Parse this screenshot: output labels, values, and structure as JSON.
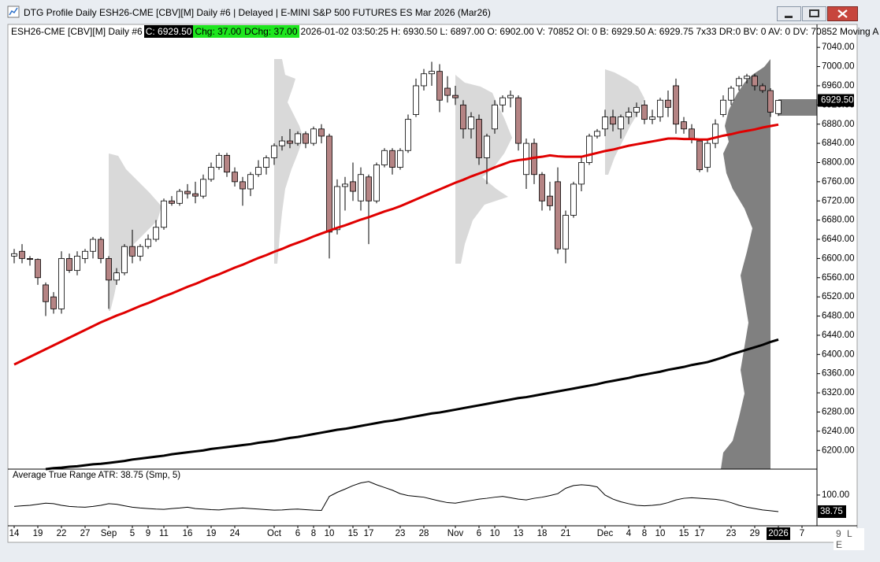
{
  "window": {
    "title": "DTG Profile Daily ESH26-CME [CBV][M]  Daily #6 | Delayed | E-MINI S&P 500 FUTURES ES Mar 2026 (Mar26)"
  },
  "header": {
    "instrument": "ESH26-CME [CBV][M]  Daily #6",
    "close": "C: 6929.50",
    "change": "Chg: 37.00",
    "day_change": "DChg: 37.00",
    "details": "2026-01-02 03:50:25 H: 6930.50 L: 6897.00 O: 6902.00 V: 70852 OI: 0 B: 6929.50 A: 6929.75 7x33 DR:0 BV: 0 AV: 0 DV: 70852 Moving A"
  },
  "status": "9 L E",
  "chart_data": [
    {
      "type": "candlestick",
      "categories": [
        "14",
        null,
        null,
        "19",
        null,
        null,
        "22",
        null,
        null,
        "27",
        null,
        null,
        "Sep",
        null,
        null,
        "5",
        null,
        "9",
        null,
        "11",
        null,
        null,
        "16",
        null,
        null,
        "19",
        null,
        null,
        "24",
        null,
        null,
        null,
        null,
        "Oct",
        null,
        null,
        "6",
        null,
        "8",
        null,
        "10",
        null,
        null,
        "15",
        null,
        "17",
        null,
        null,
        null,
        "23",
        null,
        null,
        "28",
        null,
        null,
        null,
        "Nov",
        null,
        null,
        "6",
        null,
        "10",
        null,
        null,
        "13",
        null,
        null,
        "18",
        null,
        null,
        "21",
        null,
        null,
        null,
        null,
        "Dec",
        null,
        null,
        "4",
        null,
        "8",
        null,
        "10",
        null,
        null,
        "15",
        null,
        "17",
        null,
        null,
        null,
        "23",
        null,
        null,
        "29",
        null,
        null,
        "2026",
        null,
        null,
        "7"
      ],
      "open": [
        6605,
        6615,
        6600,
        6598,
        6545,
        6520,
        6495,
        6600,
        6575,
        6600,
        6615,
        6640,
        6600,
        6555,
        6570,
        6625,
        6605,
        6625,
        6640,
        6665,
        6720,
        6715,
        6740,
        6735,
        6730,
        6765,
        6790,
        6815,
        6780,
        6760,
        6745,
        6775,
        6790,
        6810,
        6835,
        6845,
        6840,
        6860,
        6840,
        6870,
        6855,
        6660,
        6750,
        6760,
        6720,
        6770,
        6720,
        6795,
        6825,
        6790,
        6825,
        6900,
        6960,
        6985,
        6990,
        6955,
        6940,
        6920,
        6870,
        6890,
        6810,
        6870,
        6920,
        6935,
        6935,
        6775,
        6840,
        6775,
        6730,
        6760,
        6620,
        6690,
        6755,
        6800,
        6855,
        6870,
        6895,
        6870,
        6895,
        6905,
        6920,
        6890,
        6895,
        6930,
        6960,
        6885,
        6870,
        6845,
        6790,
        6840,
        6900,
        6930,
        6960,
        6975,
        6980,
        6960,
        6950,
        6902,
        null,
        null,
        null
      ],
      "high": [
        6620,
        6630,
        6605,
        6600,
        6550,
        6530,
        6615,
        6610,
        6615,
        6620,
        6645,
        6645,
        6605,
        6580,
        6630,
        6660,
        6630,
        6650,
        6680,
        6725,
        6730,
        6745,
        6755,
        6760,
        6775,
        6800,
        6820,
        6820,
        6790,
        6770,
        6780,
        6805,
        6815,
        6840,
        6855,
        6870,
        6865,
        6865,
        6875,
        6880,
        6860,
        6765,
        6770,
        6800,
        6790,
        6775,
        6800,
        6830,
        6830,
        6830,
        6900,
        6975,
        6995,
        7010,
        7005,
        6980,
        6960,
        6930,
        6905,
        6900,
        6860,
        6930,
        6940,
        6950,
        6940,
        6850,
        6850,
        6780,
        6760,
        6790,
        6700,
        6760,
        6810,
        6860,
        6870,
        6910,
        6910,
        6900,
        6915,
        6925,
        6930,
        6910,
        6935,
        6950,
        6975,
        6895,
        6880,
        6850,
        6850,
        6890,
        6940,
        6960,
        6980,
        6985,
        6985,
        6965,
        6955,
        6930.5,
        null,
        null,
        null
      ],
      "low": [
        6590,
        6590,
        6585,
        6545,
        6480,
        6485,
        6485,
        6570,
        6565,
        6590,
        6600,
        6590,
        6495,
        6545,
        6565,
        6590,
        6595,
        6620,
        6635,
        6660,
        6710,
        6710,
        6725,
        6715,
        6725,
        6760,
        6785,
        6770,
        6750,
        6710,
        6730,
        6770,
        6775,
        6795,
        6825,
        6830,
        6835,
        6830,
        6835,
        6840,
        6600,
        6650,
        6700,
        6720,
        6700,
        6630,
        6715,
        6790,
        6775,
        6785,
        6820,
        6895,
        6950,
        6960,
        6905,
        6925,
        6920,
        6850,
        6850,
        6795,
        6755,
        6860,
        6905,
        6915,
        6825,
        6745,
        6755,
        6700,
        6700,
        6610,
        6590,
        6685,
        6740,
        6795,
        6850,
        6855,
        6865,
        6850,
        6880,
        6895,
        6880,
        6880,
        6885,
        6895,
        6860,
        6860,
        6840,
        6780,
        6780,
        6830,
        6895,
        6920,
        6950,
        6965,
        6950,
        6945,
        6895,
        6897,
        null,
        null,
        null
      ],
      "close": [
        6610,
        6600,
        6598,
        6560,
        6510,
        6495,
        6600,
        6575,
        6605,
        6615,
        6640,
        6600,
        6555,
        6570,
        6625,
        6605,
        6625,
        6640,
        6665,
        6720,
        6715,
        6740,
        6735,
        6730,
        6765,
        6790,
        6815,
        6780,
        6760,
        6745,
        6775,
        6790,
        6810,
        6835,
        6845,
        6840,
        6860,
        6840,
        6870,
        6855,
        6655,
        6750,
        6755,
        6740,
        6775,
        6720,
        6795,
        6825,
        6790,
        6825,
        6890,
        6960,
        6985,
        6990,
        6930,
        6940,
        6935,
        6870,
        6895,
        6810,
        6855,
        6920,
        6935,
        6940,
        6840,
        6840,
        6775,
        6720,
        6710,
        6620,
        6690,
        6755,
        6800,
        6855,
        6865,
        6895,
        6880,
        6895,
        6905,
        6915,
        6890,
        6895,
        6930,
        6915,
        6880,
        6870,
        6850,
        6785,
        6840,
        6880,
        6930,
        6955,
        6975,
        6980,
        6960,
        6950,
        6905,
        6929.5,
        null,
        null,
        null
      ],
      "up_color": "#ffffff",
      "down_color": "#b58484",
      "last_label": "6929.50",
      "series": [
        {
          "color": "#e00000",
          "values": [
            6379,
            6387,
            6395,
            6403,
            6411,
            6419,
            6427,
            6435,
            6443,
            6451,
            6459,
            6467,
            6474,
            6481,
            6487,
            6494,
            6501,
            6507,
            6514,
            6521,
            6527,
            6534,
            6541,
            6547,
            6554,
            6561,
            6567,
            6574,
            6581,
            6587,
            6594,
            6601,
            6607,
            6614,
            6620,
            6627,
            6633,
            6639,
            6646,
            6652,
            6658,
            6664,
            6669,
            6675,
            6681,
            6686,
            6692,
            6698,
            6703,
            6709,
            6716,
            6723,
            6730,
            6737,
            6744,
            6751,
            6758,
            6764,
            6771,
            6777,
            6783,
            6790,
            6796,
            6802,
            6805,
            6807,
            6810,
            6812,
            6815,
            6813,
            6812,
            6812,
            6812,
            6816,
            6820,
            6824,
            6827,
            6831,
            6835,
            6838,
            6841,
            6844,
            6847,
            6850,
            6850,
            6849,
            6849,
            6848,
            6848,
            6852,
            6856,
            6859,
            6863,
            6866,
            6869,
            6873,
            6876,
            6879,
            null,
            null,
            null
          ]
        },
        {
          "color": "#000000",
          "values": [
            null,
            null,
            null,
            null,
            6161,
            6163,
            6164,
            6166,
            6167,
            6169,
            6171,
            6172,
            6174,
            6176,
            6178,
            6181,
            6183,
            6185,
            6187,
            6189,
            6192,
            6194,
            6196,
            6198,
            6200,
            6203,
            6205,
            6207,
            6209,
            6211,
            6213,
            6216,
            6218,
            6220,
            6223,
            6226,
            6228,
            6231,
            6234,
            6237,
            6240,
            6243,
            6245,
            6248,
            6251,
            6254,
            6257,
            6260,
            6262,
            6265,
            6268,
            6271,
            6274,
            6277,
            6279,
            6282,
            6285,
            6288,
            6291,
            6294,
            6297,
            6300,
            6303,
            6306,
            6309,
            6311,
            6314,
            6317,
            6320,
            6323,
            6326,
            6329,
            6332,
            6335,
            6338,
            6342,
            6345,
            6348,
            6351,
            6355,
            6358,
            6361,
            6364,
            6368,
            6371,
            6374,
            6378,
            6381,
            6384,
            6389,
            6394,
            6400,
            6405,
            6410,
            6415,
            6420,
            6426,
            6431,
            null,
            null,
            null
          ]
        }
      ],
      "ylim": [
        6161,
        7060
      ],
      "yticks": [
        {
          "value": 6200,
          "label": "6200.00"
        },
        {
          "value": 6240,
          "label": "6240.00"
        },
        {
          "value": 6280,
          "label": "6280.00"
        },
        {
          "value": 6320,
          "label": "6320.00"
        },
        {
          "value": 6360,
          "label": "6360.00"
        },
        {
          "value": 6400,
          "label": "6400.00"
        },
        {
          "value": 6440,
          "label": "6440.00"
        },
        {
          "value": 6480,
          "label": "6480.00"
        },
        {
          "value": 6520,
          "label": "6520.00"
        },
        {
          "value": 6560,
          "label": "6560.00"
        },
        {
          "value": 6600,
          "label": "6600.00"
        },
        {
          "value": 6640,
          "label": "6640.00"
        },
        {
          "value": 6680,
          "label": "6680.00"
        },
        {
          "value": 6720,
          "label": "6720.00"
        },
        {
          "value": 6760,
          "label": "6760.00"
        },
        {
          "value": 6800,
          "label": "6800.00"
        },
        {
          "value": 6840,
          "label": "6840.00"
        },
        {
          "value": 6880,
          "label": "6880.00"
        },
        {
          "value": 6920,
          "label": "6920.00"
        },
        {
          "value": 6960,
          "label": "6960.00"
        },
        {
          "value": 7000,
          "label": "7000.00"
        },
        {
          "value": 7040,
          "label": "7040.00"
        }
      ]
    },
    {
      "type": "line",
      "title": "Average True Range  ATR: 38.75  (Smp, 5)",
      "color": "#000000",
      "values": [
        58,
        60,
        62,
        66,
        70,
        68,
        62,
        58,
        56,
        55,
        58,
        62,
        68,
        66,
        60,
        55,
        52,
        50,
        48,
        47,
        50,
        52,
        55,
        50,
        48,
        46,
        45,
        48,
        50,
        52,
        50,
        48,
        46,
        44,
        45,
        47,
        48,
        46,
        44,
        43,
        95,
        110,
        122,
        135,
        145,
        150,
        138,
        128,
        118,
        105,
        98,
        95,
        92,
        85,
        78,
        72,
        70,
        75,
        80,
        85,
        88,
        92,
        95,
        90,
        85,
        82,
        88,
        92,
        98,
        105,
        125,
        135,
        138,
        136,
        130,
        100,
        85,
        75,
        68,
        62,
        60,
        62,
        65,
        72,
        82,
        88,
        90,
        88,
        86,
        84,
        80,
        72,
        62,
        55,
        50,
        45,
        42,
        38.75,
        null,
        null,
        null
      ],
      "ylim": [
        -5,
        193
      ],
      "yticks": [
        {
          "value": 100,
          "label": "100.00"
        }
      ]
    }
  ]
}
